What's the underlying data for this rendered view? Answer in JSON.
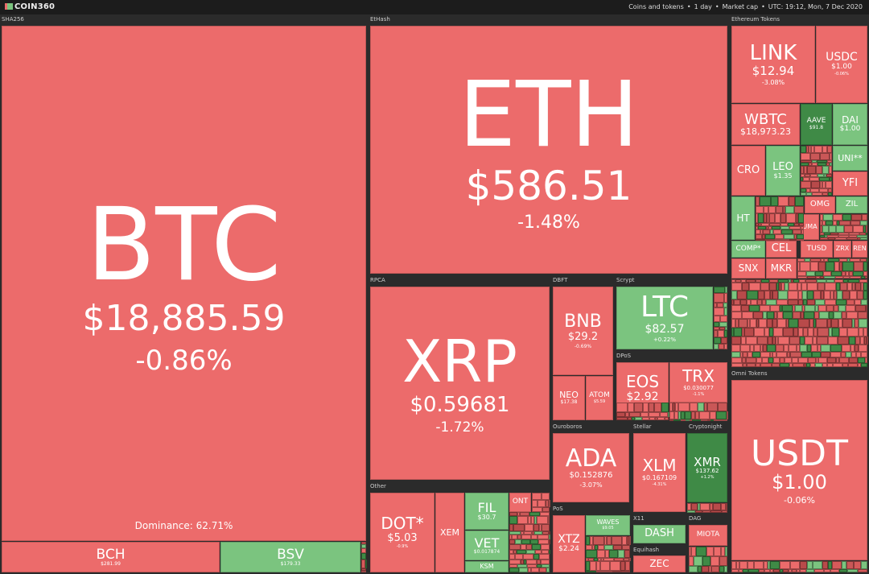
{
  "header": {
    "logo": "COIN360",
    "filters": [
      "Coins and tokens",
      "1 day",
      "Market cap",
      "UTC: 19:12, Mon, 7 Dec 2020"
    ]
  },
  "groups": [
    {
      "label": "SHA256",
      "note": "Dominance: 62.71%",
      "tiles": [
        {
          "symbol": "BTC",
          "price": "$18,885.59",
          "change": "-0.86%",
          "color": "#ec6b6b"
        },
        {
          "symbol": "BCH",
          "price": "$281.99",
          "color": "#ec6b6b"
        },
        {
          "symbol": "BSV",
          "price": "$179.33",
          "color": "#7bc47f"
        }
      ]
    },
    {
      "label": "EtHash",
      "tiles": [
        {
          "symbol": "ETH",
          "price": "$586.51",
          "change": "-1.48%",
          "color": "#ec6b6b"
        }
      ]
    },
    {
      "label": "RPCA",
      "tiles": [
        {
          "symbol": "XRP",
          "price": "$0.59681",
          "change": "-1.72%",
          "color": "#ec6b6b"
        }
      ]
    },
    {
      "label": "DBFT",
      "tiles": [
        {
          "symbol": "BNB",
          "price": "$29.2",
          "change": "-0.69%",
          "color": "#ec6b6b"
        },
        {
          "symbol": "NEO",
          "price": "$17.38",
          "color": "#ec6b6b"
        },
        {
          "symbol": "ATOM",
          "price": "$5.59",
          "color": "#ec6b6b"
        }
      ]
    },
    {
      "label": "Scrypt",
      "tiles": [
        {
          "symbol": "LTC",
          "price": "$82.57",
          "change": "+0.22%",
          "color": "#7bc47f"
        }
      ]
    },
    {
      "label": "DPoS",
      "tiles": [
        {
          "symbol": "EOS",
          "price": "$2.92",
          "change": "-1.7%",
          "color": "#ec6b6b"
        },
        {
          "symbol": "TRX",
          "price": "$0.030077",
          "change": "-1.1%",
          "color": "#ec6b6b"
        }
      ]
    },
    {
      "label": "Ouroboros",
      "tiles": [
        {
          "symbol": "ADA",
          "price": "$0.152876",
          "change": "-3.07%",
          "color": "#ec6b6b"
        }
      ]
    },
    {
      "label": "Stellar",
      "tiles": [
        {
          "symbol": "XLM",
          "price": "$0.167109",
          "change": "-4.31%",
          "color": "#ec6b6b"
        }
      ]
    },
    {
      "label": "Cryptonight",
      "tiles": [
        {
          "symbol": "XMR",
          "price": "$137.62",
          "change": "+1.2%",
          "color": "#3f8a46"
        }
      ]
    },
    {
      "label": "Other",
      "tiles": [
        {
          "symbol": "DOT*",
          "price": "$5.03",
          "change": "-0.9%",
          "color": "#ec6b6b"
        },
        {
          "symbol": "XEM",
          "color": "#ec6b6b"
        },
        {
          "symbol": "FIL",
          "price": "$30.7",
          "color": "#7bc47f"
        },
        {
          "symbol": "VET",
          "price": "$0.017874",
          "color": "#7bc47f"
        },
        {
          "symbol": "KSM",
          "color": "#7bc47f"
        },
        {
          "symbol": "ONT",
          "color": "#ec6b6b"
        }
      ]
    },
    {
      "label": "PoS",
      "tiles": [
        {
          "symbol": "XTZ",
          "price": "$2.24",
          "color": "#ec6b6b"
        },
        {
          "symbol": "WAVES",
          "price": "$9.05",
          "color": "#7bc47f"
        }
      ]
    },
    {
      "label": "X11",
      "tiles": [
        {
          "symbol": "DASH",
          "color": "#7bc47f"
        }
      ]
    },
    {
      "label": "Equihash",
      "tiles": [
        {
          "symbol": "ZEC",
          "color": "#ec6b6b"
        }
      ]
    },
    {
      "label": "DAG",
      "tiles": [
        {
          "symbol": "MIOTA",
          "color": "#ec6b6b"
        }
      ]
    },
    {
      "label": "Ethereum Tokens",
      "tiles": [
        {
          "symbol": "LINK",
          "price": "$12.94",
          "change": "-3.08%",
          "color": "#ec6b6b"
        },
        {
          "symbol": "USDC",
          "price": "$1.00",
          "change": "-0.06%",
          "color": "#ec6b6b"
        },
        {
          "symbol": "WBTC",
          "price": "$18,973.23",
          "color": "#ec6b6b"
        },
        {
          "symbol": "AAVE",
          "price": "$91.8",
          "color": "#3f8a46"
        },
        {
          "symbol": "DAI",
          "price": "$1.00",
          "color": "#7bc47f"
        },
        {
          "symbol": "CRO",
          "color": "#ec6b6b"
        },
        {
          "symbol": "LEO",
          "price": "$1.35",
          "color": "#7bc47f"
        },
        {
          "symbol": "UNI**",
          "color": "#7bc47f"
        },
        {
          "symbol": "YFI",
          "color": "#ec6b6b"
        },
        {
          "symbol": "HT",
          "color": "#7bc47f"
        },
        {
          "symbol": "OMG",
          "color": "#ec6b6b"
        },
        {
          "symbol": "ZIL",
          "color": "#7bc47f"
        },
        {
          "symbol": "COMP*",
          "color": "#7bc47f"
        },
        {
          "symbol": "CEL",
          "color": "#ec6b6b"
        },
        {
          "symbol": "SNX",
          "color": "#ec6b6b"
        },
        {
          "symbol": "MKR",
          "color": "#ec6b6b"
        },
        {
          "symbol": "UMA",
          "color": "#ec6b6b"
        },
        {
          "symbol": "TUSD",
          "color": "#ec6b6b"
        },
        {
          "symbol": "ZRX",
          "color": "#ec6b6b"
        },
        {
          "symbol": "REN",
          "color": "#ec6b6b"
        }
      ]
    },
    {
      "label": "Omni Tokens",
      "tiles": [
        {
          "symbol": "USDT",
          "price": "$1.00",
          "change": "-0.06%",
          "color": "#ec6b6b"
        }
      ]
    }
  ]
}
